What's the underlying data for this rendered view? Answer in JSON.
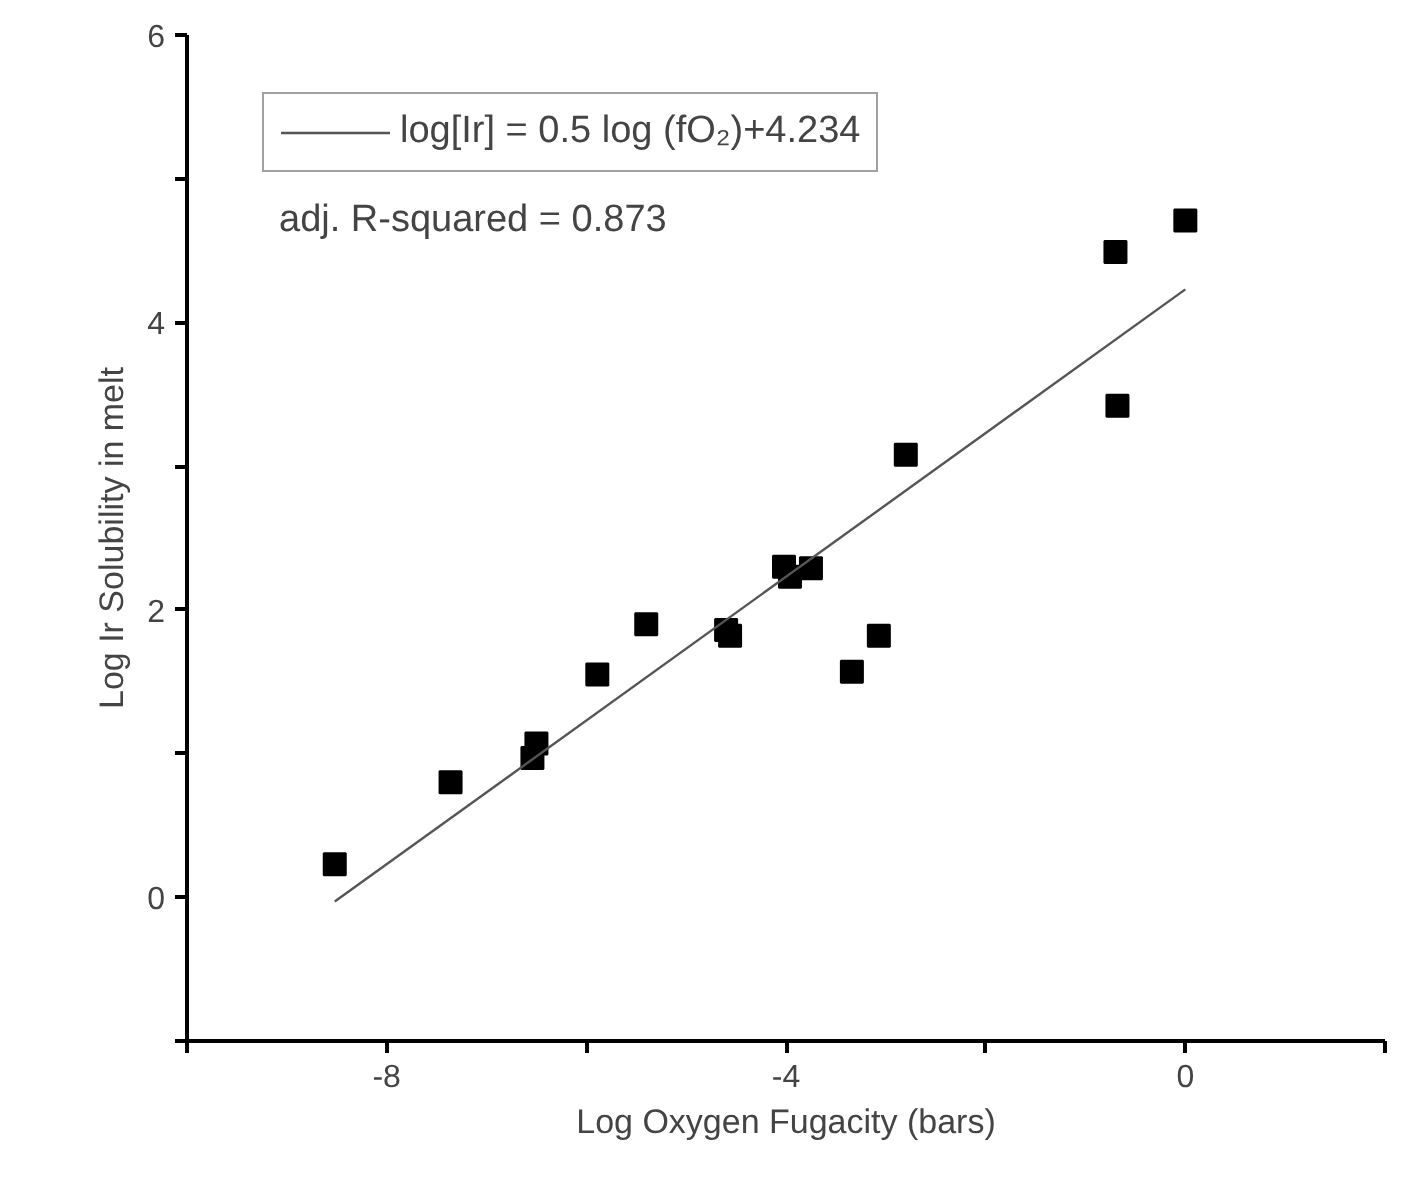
{
  "chart_data": {
    "type": "scatter",
    "xlabel": "Log Oxygen Fugacity (bars)",
    "ylabel": "Log Ir Solubility in melt",
    "xlim": [
      -10,
      2
    ],
    "ylim": [
      -1,
      6
    ],
    "xticks": [
      {
        "value": -10,
        "label": null
      },
      -8,
      {
        "value": -6,
        "label": null
      },
      -4,
      {
        "value": -2,
        "label": null
      },
      0,
      {
        "value": 2,
        "label": null
      }
    ],
    "yticks": [
      {
        "value": -1,
        "label": null
      },
      0,
      {
        "value": 1,
        "label": null
      },
      2,
      {
        "value": 3,
        "label": null
      },
      4,
      {
        "value": 5,
        "label": null
      },
      6
    ],
    "grid": false,
    "legend": "top left",
    "annotations": [
      "adj. R-squared = 0.873"
    ],
    "series": [
      {
        "marker": "square",
        "color": "#000000",
        "x": [
          -8.52,
          -7.36,
          -6.54,
          -6.5,
          -5.89,
          -5.4,
          -4.6,
          -4.56,
          -4.02,
          -3.96,
          -3.75,
          -3.34,
          -3.07,
          -2.8,
          -0.68,
          -0.7,
          0.0
        ],
        "values": [
          0.23,
          0.8,
          0.97,
          1.07,
          1.55,
          1.9,
          1.86,
          1.82,
          2.3,
          2.23,
          2.29,
          1.57,
          1.82,
          3.08,
          3.42,
          4.49,
          4.71
        ]
      },
      {
        "type": "line",
        "marker": "none",
        "name": "log[Ir] = 0.5 log (fO₂)+4.234",
        "color": "#555555",
        "x": [
          -8.52,
          0.0
        ],
        "values": [
          -0.03,
          4.23
        ]
      }
    ]
  }
}
